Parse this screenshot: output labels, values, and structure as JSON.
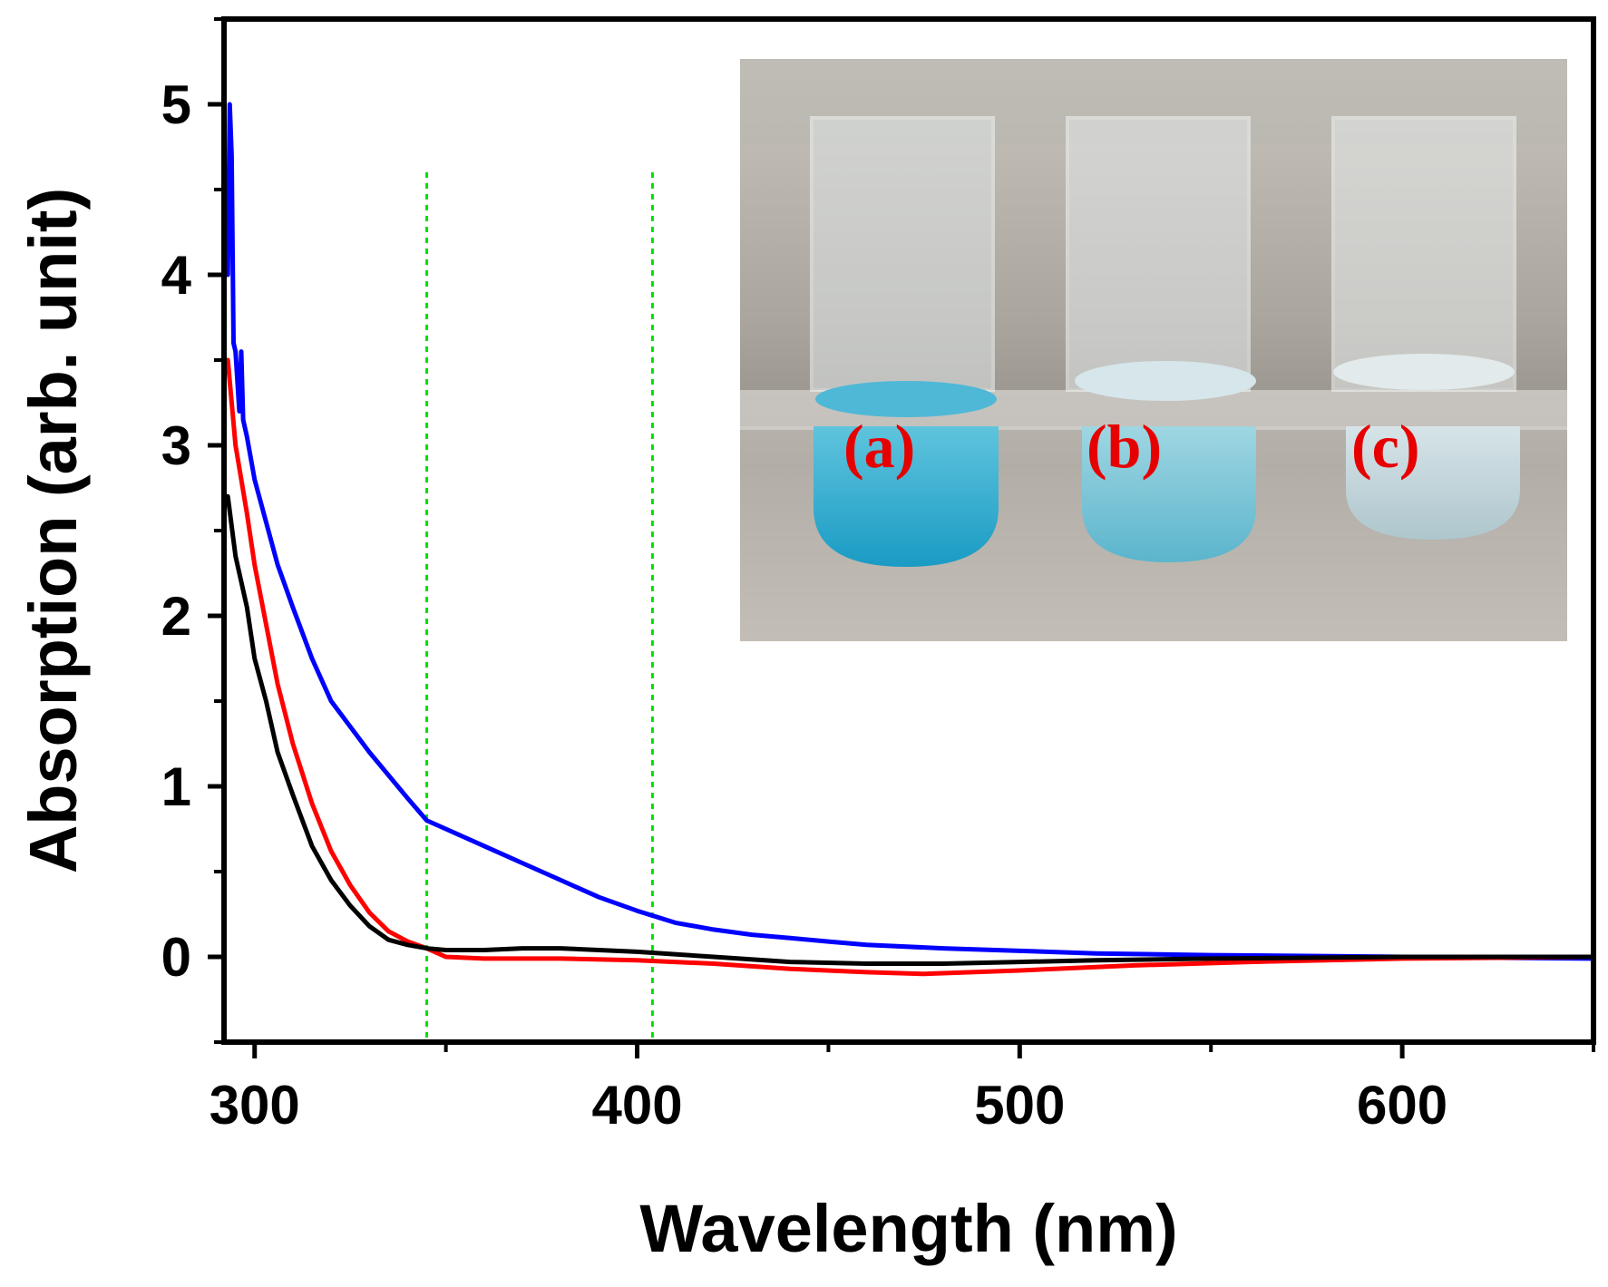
{
  "chart_data": {
    "type": "line",
    "title": "",
    "xlabel": "Wavelength (nm)",
    "ylabel": "Absorption (arb. unit)",
    "xlim": [
      292,
      650
    ],
    "ylim": [
      -0.5,
      5.5
    ],
    "xticks": [
      300,
      400,
      500,
      600
    ],
    "xminor": [
      350,
      450,
      550,
      650
    ],
    "yticks": [
      0,
      1,
      2,
      3,
      4,
      5
    ],
    "yminor": [
      -0.5,
      0.5,
      1.5,
      2.5,
      3.5,
      4.5,
      5.5
    ],
    "grid": false,
    "reference_lines": [
      {
        "x": 345,
        "color": "#00e000",
        "style": "dotted"
      },
      {
        "x": 404,
        "color": "#00e000",
        "style": "dotted"
      }
    ],
    "series": [
      {
        "name": "blue",
        "color": "#0000ff",
        "x": [
          293,
          293.5,
          294,
          294.5,
          295,
          296,
          296.5,
          297,
          298,
          300,
          303,
          306,
          310,
          315,
          320,
          330,
          340,
          345,
          350,
          360,
          370,
          380,
          390,
          400,
          410,
          420,
          430,
          440,
          450,
          460,
          480,
          500,
          520,
          550,
          600,
          650
        ],
        "y": [
          4.0,
          5.0,
          4.7,
          3.6,
          3.55,
          3.2,
          3.55,
          3.15,
          3.05,
          2.8,
          2.55,
          2.3,
          2.05,
          1.75,
          1.5,
          1.2,
          0.93,
          0.8,
          0.75,
          0.65,
          0.55,
          0.45,
          0.35,
          0.27,
          0.2,
          0.16,
          0.13,
          0.11,
          0.09,
          0.07,
          0.05,
          0.035,
          0.02,
          0.01,
          0.0,
          -0.01
        ]
      },
      {
        "name": "red",
        "color": "#ff0000",
        "x": [
          293,
          295,
          298,
          300,
          303,
          306,
          310,
          315,
          320,
          325,
          330,
          335,
          340,
          345,
          350,
          360,
          380,
          400,
          420,
          440,
          460,
          475,
          500,
          530,
          560,
          600,
          650
        ],
        "y": [
          3.5,
          3.0,
          2.6,
          2.3,
          1.95,
          1.6,
          1.25,
          0.9,
          0.62,
          0.42,
          0.26,
          0.15,
          0.09,
          0.05,
          0.0,
          -0.01,
          -0.01,
          -0.02,
          -0.04,
          -0.07,
          -0.09,
          -0.1,
          -0.08,
          -0.05,
          -0.03,
          -0.01,
          0.0
        ]
      },
      {
        "name": "black",
        "color": "#000000",
        "x": [
          293,
          295,
          298,
          300,
          303,
          306,
          310,
          315,
          320,
          325,
          330,
          335,
          340,
          345,
          350,
          360,
          370,
          380,
          390,
          400,
          420,
          440,
          460,
          480,
          500,
          520,
          550,
          600,
          650
        ],
        "y": [
          2.7,
          2.35,
          2.05,
          1.75,
          1.5,
          1.2,
          0.95,
          0.65,
          0.45,
          0.3,
          0.18,
          0.1,
          0.07,
          0.05,
          0.04,
          0.04,
          0.05,
          0.05,
          0.04,
          0.03,
          0.0,
          -0.03,
          -0.04,
          -0.04,
          -0.03,
          -0.02,
          -0.01,
          0.0,
          0.0
        ]
      }
    ],
    "inset": {
      "description": "photo of three cuvettes",
      "labels": [
        "(a)",
        "(b)",
        "(c)"
      ]
    }
  }
}
